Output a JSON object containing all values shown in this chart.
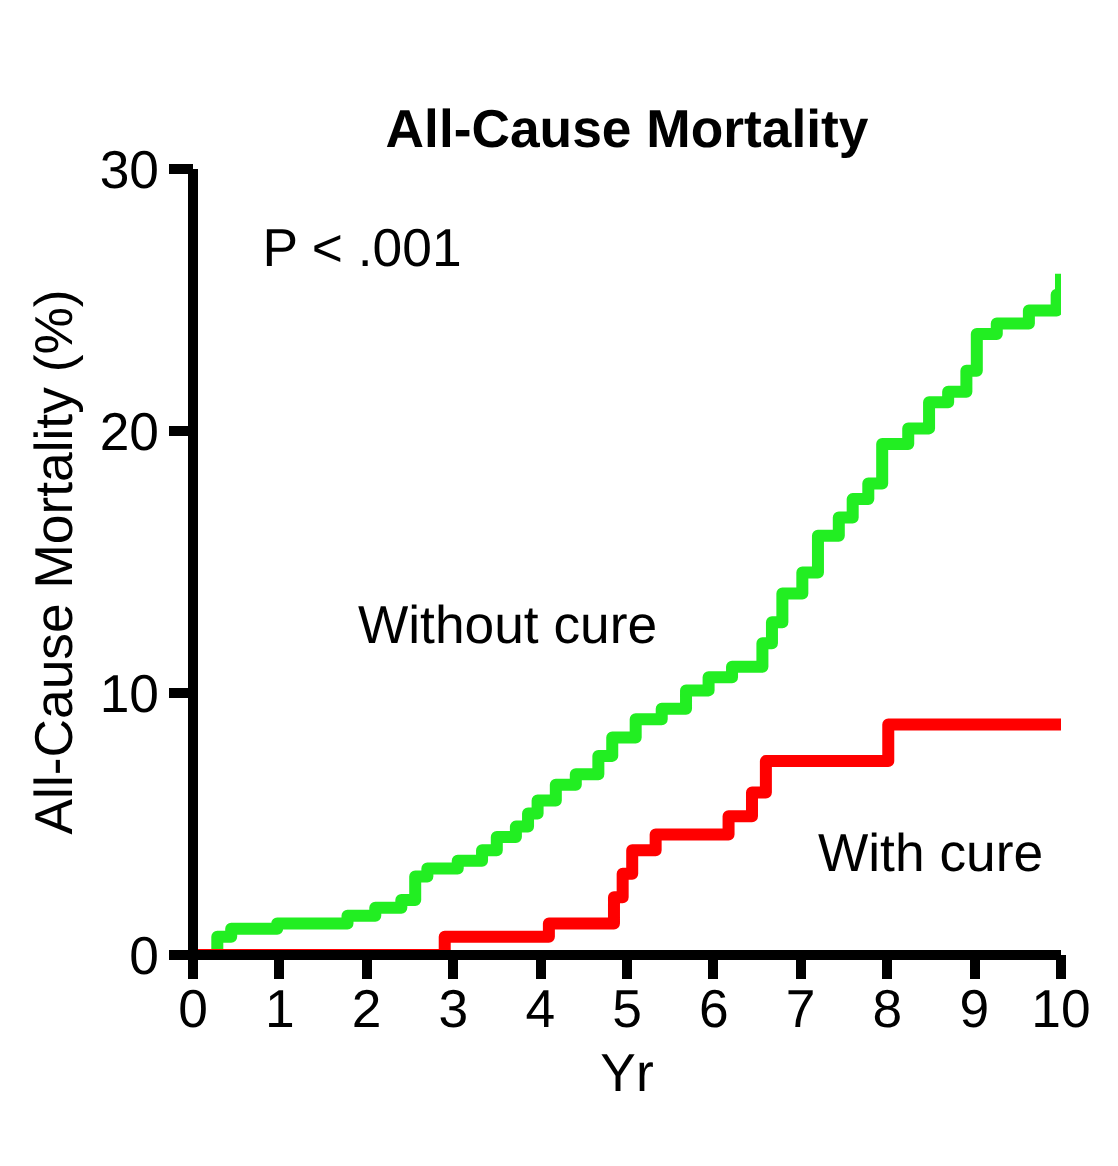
{
  "chart_data": {
    "type": "step",
    "title": "All-Cause Mortality",
    "xlabel": "Yr",
    "ylabel": "All-Cause Mortality (%)",
    "annotations": [
      "P < .001"
    ],
    "series": [
      {
        "name": "Without cure",
        "color": "#22ee22",
        "x": [
          0,
          0.28,
          0.44,
          0.97,
          1.78,
          2.1,
          2.4,
          2.56,
          2.7,
          3.05,
          3.33,
          3.5,
          3.72,
          3.86,
          3.97,
          4.18,
          4.41,
          4.67,
          4.83,
          5.1,
          5.4,
          5.68,
          5.94,
          6.21,
          6.56,
          6.67,
          6.79,
          7.02,
          7.2,
          7.44,
          7.6,
          7.78,
          7.94,
          8.24,
          8.48,
          8.7,
          8.91,
          9.03,
          9.26,
          9.63,
          9.95,
          10
        ],
        "values": [
          0,
          0.7,
          1.0,
          1.2,
          1.5,
          1.8,
          2.1,
          3.0,
          3.3,
          3.6,
          4.0,
          4.5,
          4.9,
          5.4,
          5.9,
          6.5,
          6.9,
          7.6,
          8.3,
          9.0,
          9.4,
          10.1,
          10.6,
          11.0,
          11.9,
          12.7,
          13.8,
          14.6,
          16.0,
          16.7,
          17.4,
          18.0,
          19.5,
          20.1,
          21.1,
          21.5,
          22.3,
          23.7,
          24.1,
          24.6,
          25.2,
          26.0
        ]
      },
      {
        "name": "With cure",
        "color": "#ff0000",
        "x": [
          0,
          2.9,
          4.1,
          4.85,
          4.95,
          5.06,
          5.33,
          6.17,
          6.44,
          6.6,
          8.01,
          10
        ],
        "values": [
          0,
          0.7,
          1.2,
          2.2,
          3.1,
          4.0,
          4.6,
          5.3,
          6.2,
          7.4,
          8.8,
          8.8
        ]
      }
    ],
    "xlim": [
      0,
      10
    ],
    "xticks": [
      0,
      1,
      2,
      3,
      4,
      5,
      6,
      7,
      8,
      9,
      10
    ],
    "ylim": [
      0,
      30
    ],
    "yticks": [
      0,
      10,
      20,
      30
    ],
    "grid": false,
    "marker": "none",
    "line_style": "solid"
  }
}
